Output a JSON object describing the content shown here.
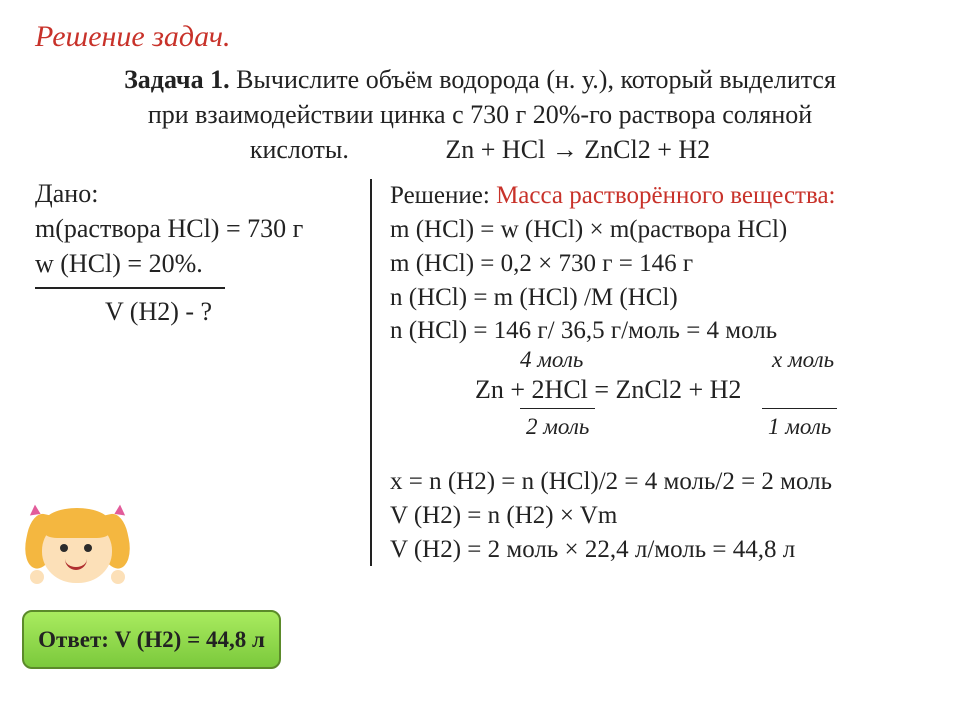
{
  "title": "Решение задач.",
  "problem": {
    "label": "Задача 1.",
    "text_line1": " Вычислите объём водорода (н. у.), который выделится",
    "text_line2": "при взаимодействии цинка с 730 г 20%-го раствора соляной",
    "text_line3_left": "кислоты.",
    "equation_unbalanced": "Zn + HCl → ZnCl2 + H2"
  },
  "given": {
    "label": "Дано:",
    "line1": "m(раствора HCl) = 730 г",
    "line2": "w (HCl) = 20%.",
    "find": "V (H2) - ?"
  },
  "solution": {
    "label": "Решение: ",
    "mass_title": "Масса растворённого вещества:",
    "line1": "m (HCl) = w (HCl) × m(раствора HCl)",
    "line2": " m (HCl) = 0,2 × 730 г = 146 г",
    "line3": "n (HCl) = m (HCl) /M (HCl)",
    "line4": " n (HCl) = 146 г/ 36,5 г/моль = 4 моль",
    "eq": {
      "top_left": "4 моль",
      "top_right": "х моль",
      "main": "Zn + 2HCl = ZnCl2 + H2",
      "bot_left": "2 моль",
      "bot_right": "1 моль"
    },
    "line5": "х = n (H2) = n (HCl)/2 = 4 моль/2 = 2 моль",
    "line6": "V (H2) = n (H2) × Vm",
    "line7": "V (H2) = 2 моль × 22,4 л/моль = 44,8 л"
  },
  "answer": "Ответ: V (H2) = 44,8 л",
  "colors": {
    "accent_red": "#c8322a",
    "text": "#222222",
    "answer_bg_top": "#a9eb5f",
    "answer_bg_bottom": "#7bc93c",
    "answer_border": "#5b8a2a"
  },
  "typography": {
    "title_fontsize": 30,
    "body_fontsize": 26,
    "annotation_fontsize": 23,
    "font_family": "Times New Roman"
  }
}
